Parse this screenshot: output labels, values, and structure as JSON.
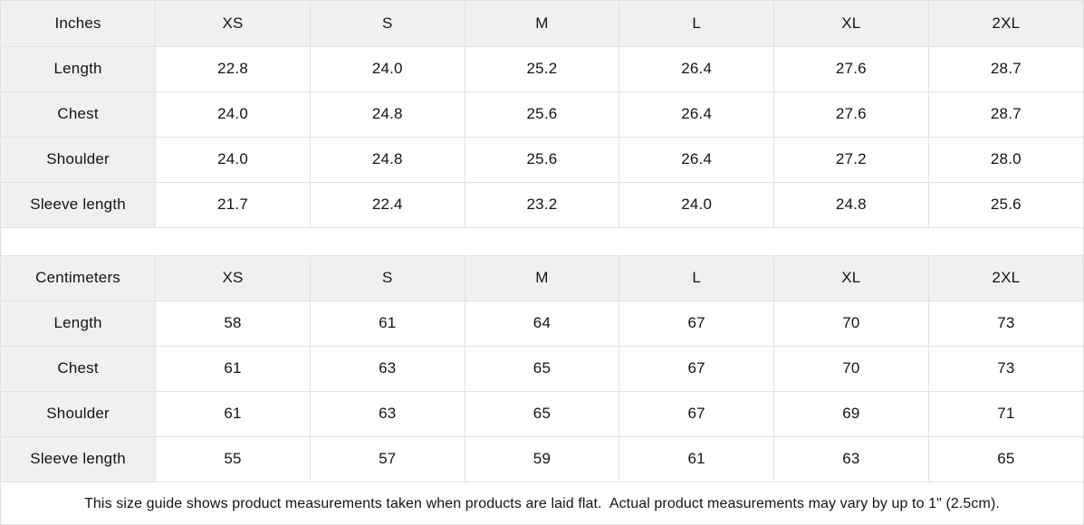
{
  "chart_data": [
    {
      "type": "table",
      "unit_label": "Inches",
      "columns": [
        "XS",
        "S",
        "M",
        "L",
        "XL",
        "2XL"
      ],
      "rows": [
        {
          "label": "Length",
          "values": [
            "22.8",
            "24.0",
            "25.2",
            "26.4",
            "27.6",
            "28.7"
          ]
        },
        {
          "label": "Chest",
          "values": [
            "24.0",
            "24.8",
            "25.6",
            "26.4",
            "27.6",
            "28.7"
          ]
        },
        {
          "label": "Shoulder",
          "values": [
            "24.0",
            "24.8",
            "25.6",
            "26.4",
            "27.2",
            "28.0"
          ]
        },
        {
          "label": "Sleeve length",
          "values": [
            "21.7",
            "22.4",
            "23.2",
            "24.0",
            "24.8",
            "25.6"
          ]
        }
      ]
    },
    {
      "type": "table",
      "unit_label": "Centimeters",
      "columns": [
        "XS",
        "S",
        "M",
        "L",
        "XL",
        "2XL"
      ],
      "rows": [
        {
          "label": "Length",
          "values": [
            "58",
            "61",
            "64",
            "67",
            "70",
            "73"
          ]
        },
        {
          "label": "Chest",
          "values": [
            "61",
            "63",
            "65",
            "67",
            "70",
            "73"
          ]
        },
        {
          "label": "Shoulder",
          "values": [
            "61",
            "63",
            "65",
            "67",
            "69",
            "71"
          ]
        },
        {
          "label": "Sleeve length",
          "values": [
            "55",
            "57",
            "59",
            "61",
            "63",
            "65"
          ]
        }
      ]
    }
  ],
  "footnote": "This size guide shows product measurements taken when products are laid flat.  Actual product measurements may vary by up to 1\" (2.5cm).",
  "colors": {
    "header_bg": "#f0f0f1",
    "label_column_bg": "#f0f0f1",
    "grid_line": "#e2e2e2",
    "cell_bg": "#ffffff",
    "text": "#141414"
  }
}
